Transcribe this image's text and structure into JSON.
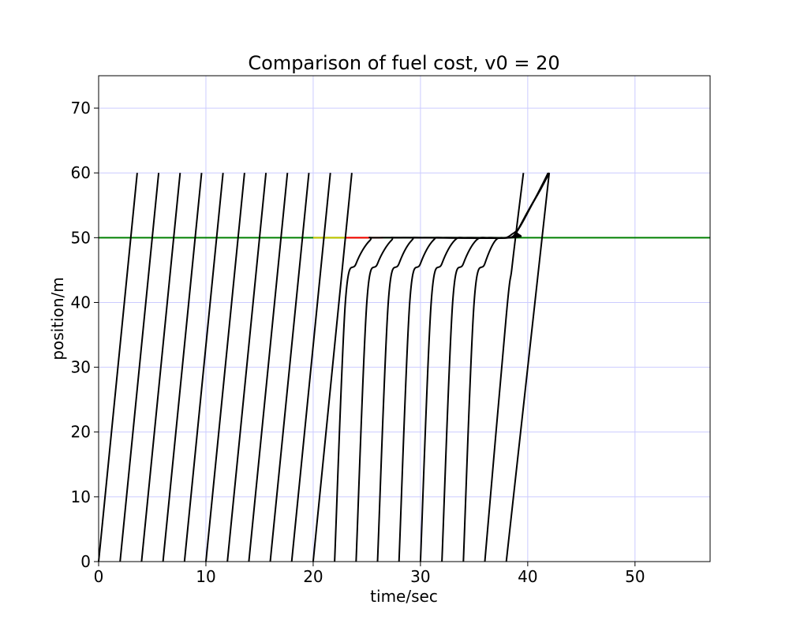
{
  "chart_data": {
    "type": "line",
    "title": "Comparison of fuel cost, v0 = 20",
    "xlabel": "time/sec",
    "ylabel": "position/m",
    "xlim": [
      0,
      57
    ],
    "ylim": [
      0,
      75
    ],
    "xticks": [
      0,
      10,
      20,
      30,
      40,
      50
    ],
    "yticks": [
      0,
      10,
      20,
      30,
      40,
      50,
      60,
      70
    ],
    "grid": true,
    "colors": {
      "grid": "#ccccff",
      "trajectory": "#000000",
      "stop_line": "#008000",
      "yellow_segment": "#c8c800",
      "red_segment": "#ff0000"
    },
    "stop_line": {
      "y": 50,
      "x": [
        0,
        57
      ]
    },
    "signal_segments": [
      {
        "color": "yellow",
        "x": [
          20,
          23
        ],
        "y": 50
      },
      {
        "color": "red",
        "x": [
          23,
          26.5
        ],
        "y": 50
      }
    ],
    "series": [
      {
        "points": [
          [
            0,
            0
          ],
          [
            3.6,
            60
          ]
        ]
      },
      {
        "points": [
          [
            2,
            0
          ],
          [
            5.6,
            60
          ]
        ]
      },
      {
        "points": [
          [
            4,
            0
          ],
          [
            7.6,
            60
          ]
        ]
      },
      {
        "points": [
          [
            6,
            0
          ],
          [
            9.6,
            60
          ]
        ]
      },
      {
        "points": [
          [
            8,
            0
          ],
          [
            11.6,
            60
          ]
        ]
      },
      {
        "points": [
          [
            10,
            0
          ],
          [
            13.6,
            60
          ]
        ]
      },
      {
        "points": [
          [
            12,
            0
          ],
          [
            15.6,
            60
          ]
        ]
      },
      {
        "points": [
          [
            14,
            0
          ],
          [
            17.6,
            60
          ]
        ]
      },
      {
        "points": [
          [
            16,
            0
          ],
          [
            19.6,
            60
          ]
        ]
      },
      {
        "points": [
          [
            18,
            0
          ],
          [
            21.6,
            60
          ]
        ]
      },
      {
        "points": [
          [
            20,
            0
          ],
          [
            23.6,
            60
          ]
        ]
      },
      {
        "points": [
          [
            22,
            0
          ],
          [
            23.0,
            40
          ],
          [
            24.0,
            46
          ],
          [
            25.3,
            49.6
          ],
          [
            26.5,
            50
          ],
          [
            38.3,
            50
          ],
          [
            39.0,
            51
          ],
          [
            40.0,
            54
          ],
          [
            41.2,
            57.5
          ],
          [
            42.0,
            60
          ]
        ]
      },
      {
        "points": [
          [
            24,
            0
          ],
          [
            25.0,
            40
          ],
          [
            26.0,
            46
          ],
          [
            27.3,
            49.6
          ],
          [
            28.4,
            50
          ],
          [
            38.3,
            50
          ],
          [
            39.0,
            51
          ],
          [
            40.0,
            54
          ],
          [
            41.2,
            57.5
          ],
          [
            42.0,
            60
          ]
        ]
      },
      {
        "points": [
          [
            26,
            0
          ],
          [
            27.0,
            40
          ],
          [
            28.0,
            46
          ],
          [
            29.2,
            49.6
          ],
          [
            30.4,
            50
          ],
          [
            38.3,
            50
          ],
          [
            39.0,
            51
          ],
          [
            40.0,
            54
          ],
          [
            41.2,
            57.5
          ],
          [
            42.0,
            60
          ]
        ]
      },
      {
        "points": [
          [
            28,
            0
          ],
          [
            29.0,
            40
          ],
          [
            30.0,
            46
          ],
          [
            31.2,
            49.6
          ],
          [
            32.4,
            50
          ],
          [
            38.3,
            50
          ],
          [
            39.0,
            51
          ],
          [
            40.0,
            54
          ],
          [
            41.2,
            57.5
          ],
          [
            42.0,
            60
          ]
        ]
      },
      {
        "points": [
          [
            30,
            0
          ],
          [
            31.0,
            40
          ],
          [
            32.0,
            46
          ],
          [
            33.2,
            49.6
          ],
          [
            34.4,
            50
          ],
          [
            38.3,
            50
          ],
          [
            39.0,
            51
          ],
          [
            40.0,
            54
          ],
          [
            41.2,
            57.5
          ],
          [
            42.0,
            60
          ]
        ]
      },
      {
        "points": [
          [
            32,
            0
          ],
          [
            33.0,
            40
          ],
          [
            34.0,
            46
          ],
          [
            35.2,
            49.6
          ],
          [
            36.4,
            50
          ],
          [
            38.3,
            50
          ],
          [
            39.0,
            51
          ],
          [
            40.0,
            54
          ],
          [
            41.2,
            57.5
          ],
          [
            42.0,
            60
          ]
        ]
      },
      {
        "points": [
          [
            34,
            0
          ],
          [
            35.0,
            40
          ],
          [
            36.0,
            46
          ],
          [
            37.0,
            49.6
          ],
          [
            38.0,
            50
          ],
          [
            38.5,
            50.5
          ],
          [
            39.2,
            51.5
          ],
          [
            40.2,
            54.5
          ],
          [
            41.3,
            58
          ],
          [
            41.9,
            60
          ]
        ]
      },
      {
        "points": [
          [
            36,
            0
          ],
          [
            38.0,
            38
          ],
          [
            38.5,
            45
          ],
          [
            39.0,
            52
          ],
          [
            39.6,
            60
          ]
        ]
      },
      {
        "points": [
          [
            38,
            0
          ],
          [
            42.0,
            60
          ]
        ]
      }
    ]
  }
}
